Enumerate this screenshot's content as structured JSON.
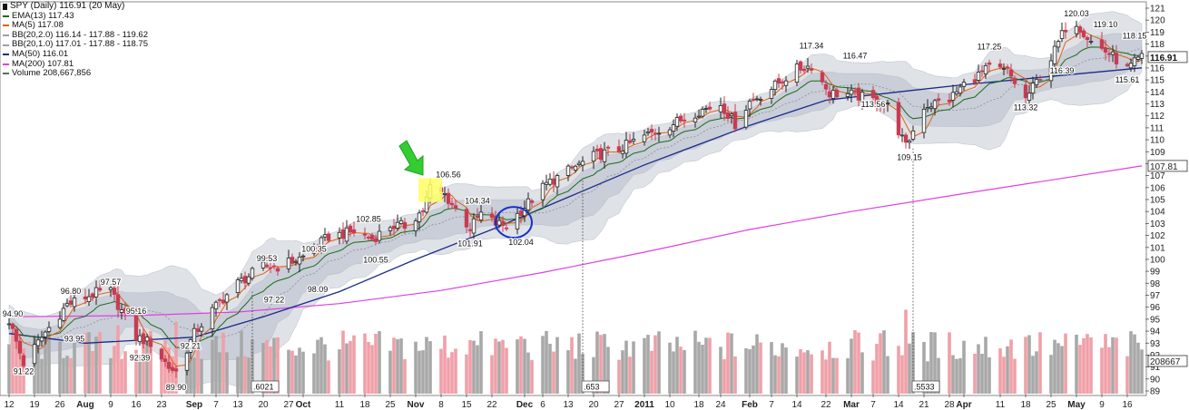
{
  "legend": {
    "title": "SPY (Daily) 116.91 (20 May)",
    "items": [
      {
        "text": "EMA(13) 117.43",
        "color": "#1a6b1a"
      },
      {
        "text": "MA(5) 117.08",
        "color": "#e06010"
      },
      {
        "text": "BB(20,2.0) 116.14 - 117.88 - 119.62",
        "color": "#9aa0a8"
      },
      {
        "text": "BB(20,1.0) 117.01 - 117.88 - 118.75",
        "color": "#9aa0a8"
      },
      {
        "text": "MA(50) 116.01",
        "color": "#1b2a8a"
      },
      {
        "text": "MA(200) 107.81",
        "color": "#e040e0"
      },
      {
        "text": "Volume 208,667,856",
        "color": "#666666"
      }
    ]
  },
  "chart_data": {
    "type": "candlestick",
    "title": "SPY (Daily) 116.91 (20 May)",
    "y_axis": {
      "min": 89,
      "max": 121,
      "ticks": [
        89,
        90,
        91,
        92,
        93,
        94,
        95,
        96,
        97,
        98,
        99,
        100,
        101,
        102,
        103,
        104,
        105,
        106,
        107,
        108,
        109,
        110,
        111,
        112,
        113,
        114,
        115,
        116,
        117,
        118,
        119,
        120,
        121
      ]
    },
    "x_axis": {
      "start": "2010-07-12",
      "end": "2011-05-20",
      "ticks": [
        {
          "label": "12",
          "date": "2010-07-12",
          "bold": false
        },
        {
          "label": "19",
          "date": "2010-07-19",
          "bold": false
        },
        {
          "label": "26",
          "date": "2010-07-26",
          "bold": false
        },
        {
          "label": "Aug",
          "date": "2010-08-02",
          "bold": true
        },
        {
          "label": "9",
          "date": "2010-08-09",
          "bold": false
        },
        {
          "label": "16",
          "date": "2010-08-16",
          "bold": false
        },
        {
          "label": "23",
          "date": "2010-08-23",
          "bold": false
        },
        {
          "label": "Sep",
          "date": "2010-09-01",
          "bold": true
        },
        {
          "label": "7",
          "date": "2010-09-07",
          "bold": false
        },
        {
          "label": "13",
          "date": "2010-09-13",
          "bold": false
        },
        {
          "label": "20",
          "date": "2010-09-20",
          "bold": false
        },
        {
          "label": "27",
          "date": "2010-09-27",
          "bold": false
        },
        {
          "label": "Oct",
          "date": "2010-10-01",
          "bold": true
        },
        {
          "label": "11",
          "date": "2010-10-11",
          "bold": false
        },
        {
          "label": "18",
          "date": "2010-10-18",
          "bold": false
        },
        {
          "label": "25",
          "date": "2010-10-25",
          "bold": false
        },
        {
          "label": "Nov",
          "date": "2010-11-01",
          "bold": true
        },
        {
          "label": "8",
          "date": "2010-11-08",
          "bold": false
        },
        {
          "label": "15",
          "date": "2010-11-15",
          "bold": false
        },
        {
          "label": "22",
          "date": "2010-11-22",
          "bold": false
        },
        {
          "label": "Dec",
          "date": "2010-12-01",
          "bold": true
        },
        {
          "label": "6",
          "date": "2010-12-06",
          "bold": false
        },
        {
          "label": "13",
          "date": "2010-12-13",
          "bold": false
        },
        {
          "label": "20",
          "date": "2010-12-20",
          "bold": false
        },
        {
          "label": "27",
          "date": "2010-12-27",
          "bold": false
        },
        {
          "label": "2011",
          "date": "2011-01-03",
          "bold": true
        },
        {
          "label": "10",
          "date": "2011-01-10",
          "bold": false
        },
        {
          "label": "18",
          "date": "2011-01-18",
          "bold": false
        },
        {
          "label": "24",
          "date": "2011-01-24",
          "bold": false
        },
        {
          "label": "Feb",
          "date": "2011-02-01",
          "bold": true
        },
        {
          "label": "7",
          "date": "2011-02-07",
          "bold": false
        },
        {
          "label": "14",
          "date": "2011-02-14",
          "bold": false
        },
        {
          "label": "22",
          "date": "2011-02-22",
          "bold": false
        },
        {
          "label": "Mar",
          "date": "2011-03-01",
          "bold": true
        },
        {
          "label": "7",
          "date": "2011-03-07",
          "bold": false
        },
        {
          "label": "14",
          "date": "2011-03-14",
          "bold": false
        },
        {
          "label": "21",
          "date": "2011-03-21",
          "bold": false
        },
        {
          "label": "28",
          "date": "2011-03-28",
          "bold": false
        },
        {
          "label": "Apr",
          "date": "2011-04-01",
          "bold": true
        },
        {
          "label": "11",
          "date": "2011-04-11",
          "bold": false
        },
        {
          "label": "18",
          "date": "2011-04-18",
          "bold": false
        },
        {
          "label": "25",
          "date": "2011-04-25",
          "bold": false
        },
        {
          "label": "May",
          "date": "2011-05-02",
          "bold": true
        },
        {
          "label": "9",
          "date": "2011-05-09",
          "bold": false
        },
        {
          "label": "16",
          "date": "2011-05-16",
          "bold": false
        }
      ]
    },
    "closing_path": [
      [
        "2010-07-12",
        94.9
      ],
      [
        "2010-07-16",
        91.3
      ],
      [
        "2010-07-22",
        93.9
      ],
      [
        "2010-07-28",
        96.2
      ],
      [
        "2010-08-05",
        97.2
      ],
      [
        "2010-08-09",
        97.3
      ],
      [
        "2010-08-16",
        93.5
      ],
      [
        "2010-08-20",
        93.0
      ],
      [
        "2010-08-25",
        91.0
      ],
      [
        "2010-08-27",
        90.6
      ],
      [
        "2010-09-01",
        93.8
      ],
      [
        "2010-09-07",
        96.1
      ],
      [
        "2010-09-13",
        98.0
      ],
      [
        "2010-09-20",
        99.4
      ],
      [
        "2010-09-24",
        99.4
      ],
      [
        "2010-10-01",
        100.2
      ],
      [
        "2010-10-08",
        101.9
      ],
      [
        "2010-10-15",
        102.3
      ],
      [
        "2010-10-20",
        101.7
      ],
      [
        "2010-10-25",
        102.8
      ],
      [
        "2010-10-29",
        102.8
      ],
      [
        "2010-11-03",
        104.1
      ],
      [
        "2010-11-05",
        106.0
      ],
      [
        "2010-11-09",
        105.4
      ],
      [
        "2010-11-12",
        104.2
      ],
      [
        "2010-11-16",
        102.6
      ],
      [
        "2010-11-19",
        103.8
      ],
      [
        "2010-11-23",
        103.0
      ],
      [
        "2010-11-26",
        102.8
      ],
      [
        "2010-12-01",
        104.4
      ],
      [
        "2010-12-07",
        106.3
      ],
      [
        "2010-12-13",
        107.4
      ],
      [
        "2010-12-20",
        108.6
      ],
      [
        "2010-12-27",
        109.2
      ],
      [
        "2011-01-03",
        110.3
      ],
      [
        "2011-01-10",
        111.2
      ],
      [
        "2011-01-18",
        112.4
      ],
      [
        "2011-01-24",
        113.0
      ],
      [
        "2011-01-28",
        111.3
      ],
      [
        "2011-02-01",
        113.2
      ],
      [
        "2011-02-07",
        114.3
      ],
      [
        "2011-02-14",
        115.9
      ],
      [
        "2011-02-18",
        116.2
      ],
      [
        "2011-02-23",
        113.9
      ],
      [
        "2011-03-01",
        113.8
      ],
      [
        "2011-03-07",
        113.3
      ],
      [
        "2011-03-11",
        112.8
      ],
      [
        "2011-03-16",
        109.4
      ],
      [
        "2011-03-21",
        112.8
      ],
      [
        "2011-03-28",
        113.4
      ],
      [
        "2011-04-01",
        114.6
      ],
      [
        "2011-04-08",
        116.0
      ],
      [
        "2011-04-13",
        115.7
      ],
      [
        "2011-04-18",
        113.4
      ],
      [
        "2011-04-25",
        116.8
      ],
      [
        "2011-04-29",
        119.4
      ],
      [
        "2011-05-02",
        119.8
      ],
      [
        "2011-05-06",
        118.2
      ],
      [
        "2011-05-11",
        117.2
      ],
      [
        "2011-05-16",
        115.9
      ],
      [
        "2011-05-20",
        116.9
      ]
    ],
    "ma50_path": [
      [
        "2010-07-12",
        93.8
      ],
      [
        "2010-08-02",
        93.0
      ],
      [
        "2010-09-01",
        93.5
      ],
      [
        "2010-09-20",
        95.2
      ],
      [
        "2010-10-11",
        97.3
      ],
      [
        "2010-11-01",
        100.0
      ],
      [
        "2010-11-22",
        102.5
      ],
      [
        "2010-12-13",
        105.2
      ],
      [
        "2011-01-03",
        107.9
      ],
      [
        "2011-02-01",
        111.2
      ],
      [
        "2011-02-22",
        113.3
      ],
      [
        "2011-03-14",
        114.0
      ],
      [
        "2011-04-01",
        114.6
      ],
      [
        "2011-04-25",
        115.3
      ],
      [
        "2011-05-20",
        116.01
      ]
    ],
    "ma200_path": [
      [
        "2010-07-12",
        95.2
      ],
      [
        "2010-08-16",
        95.3
      ],
      [
        "2010-09-13",
        95.6
      ],
      [
        "2010-10-11",
        96.3
      ],
      [
        "2010-11-08",
        97.4
      ],
      [
        "2010-12-06",
        98.9
      ],
      [
        "2011-01-03",
        100.6
      ],
      [
        "2011-02-01",
        102.5
      ],
      [
        "2011-03-01",
        104.0
      ],
      [
        "2011-04-01",
        105.5
      ],
      [
        "2011-05-20",
        107.81
      ]
    ],
    "annotations": [
      {
        "label": "94.90",
        "date": "2010-07-13",
        "price": 94.9,
        "pos": "above"
      },
      {
        "label": "91.22",
        "date": "2010-07-16",
        "price": 91.22,
        "pos": "below"
      },
      {
        "label": "96.80",
        "date": "2010-07-29",
        "price": 96.8,
        "pos": "above"
      },
      {
        "label": "93.95",
        "date": "2010-07-30",
        "price": 93.95,
        "pos": "below"
      },
      {
        "label": "97.57",
        "date": "2010-08-09",
        "price": 97.57,
        "pos": "above"
      },
      {
        "label": "95.16",
        "date": "2010-08-16",
        "price": 95.16,
        "pos": "above"
      },
      {
        "label": "92.39",
        "date": "2010-08-17",
        "price": 92.39,
        "pos": "below"
      },
      {
        "label": "92.21",
        "date": "2010-08-31",
        "price": 92.21,
        "pos": "above"
      },
      {
        "label": "89.90",
        "date": "2010-08-27",
        "price": 89.9,
        "pos": "below"
      },
      {
        "label": "99.53",
        "date": "2010-09-21",
        "price": 99.53,
        "pos": "above"
      },
      {
        "label": "97.22",
        "date": "2010-09-23",
        "price": 97.22,
        "pos": "below"
      },
      {
        "label": "100.35",
        "date": "2010-10-04",
        "price": 100.35,
        "pos": "above"
      },
      {
        "label": "98.09",
        "date": "2010-10-05",
        "price": 98.09,
        "pos": "below"
      },
      {
        "label": "102.85",
        "date": "2010-10-19",
        "price": 102.85,
        "pos": "above"
      },
      {
        "label": "100.55",
        "date": "2010-10-21",
        "price": 100.55,
        "pos": "below"
      },
      {
        "label": "106.56",
        "date": "2010-11-10",
        "price": 106.56,
        "pos": "above"
      },
      {
        "label": "104.34",
        "date": "2010-11-18",
        "price": 104.34,
        "pos": "above"
      },
      {
        "label": "101.91",
        "date": "2010-11-16",
        "price": 101.91,
        "pos": "below"
      },
      {
        "label": "102.04",
        "date": "2010-11-30",
        "price": 102.04,
        "pos": "below"
      },
      {
        "label": "117.34",
        "date": "2011-02-18",
        "price": 117.34,
        "pos": "above"
      },
      {
        "label": "116.47",
        "date": "2011-03-02",
        "price": 116.47,
        "pos": "above"
      },
      {
        "label": "113.56",
        "date": "2011-03-07",
        "price": 113.56,
        "pos": "below"
      },
      {
        "label": "109.15",
        "date": "2011-03-17",
        "price": 109.15,
        "pos": "below"
      },
      {
        "label": "117.25",
        "date": "2011-04-08",
        "price": 117.25,
        "pos": "above"
      },
      {
        "label": "113.32",
        "date": "2011-04-18",
        "price": 113.32,
        "pos": "below"
      },
      {
        "label": "120.03",
        "date": "2011-05-02",
        "price": 120.03,
        "pos": "above"
      },
      {
        "label": "119.10",
        "date": "2011-05-10",
        "price": 119.1,
        "pos": "above"
      },
      {
        "label": "116.39",
        "date": "2011-04-28",
        "price": 116.39,
        "pos": "below"
      },
      {
        "label": "118.15",
        "date": "2011-05-18",
        "price": 118.15,
        "pos": "above"
      },
      {
        "label": "115.61",
        "date": "2011-05-16",
        "price": 115.61,
        "pos": "below"
      }
    ],
    "marker_lines": [
      {
        "date": "2010-09-17",
        "label": ".6021"
      },
      {
        "date": "2010-12-17",
        "label": ".653"
      },
      {
        "date": "2011-03-18",
        "label": ".5533"
      }
    ],
    "right_labels": [
      {
        "price": 116.91,
        "label": "116.91",
        "emphasis": true
      },
      {
        "price": 107.81,
        "label": "107.81",
        "emphasis": false
      },
      {
        "price": 91.5,
        "label": "208667",
        "emphasis": false
      }
    ],
    "highlight_box": {
      "date": "2010-11-05",
      "price_low": 104.8,
      "price_high": 106.8,
      "color": "#ffff66"
    },
    "circle": {
      "date": "2010-11-28",
      "price": 103.1
    },
    "arrow": {
      "date": "2010-11-02",
      "price": 107.2,
      "color": "#33cc33"
    },
    "colors": {
      "up": "#ffffff",
      "down": "#c83c52",
      "ema13": "#1a6b1a",
      "ma5": "#e06010",
      "ma50": "#1b2a8a",
      "ma200": "#e040e0",
      "band_outer": "#dfe2e6",
      "band_inner": "#c9ced8",
      "volume_up": "#a8a8a8",
      "volume_down": "#f0a0a8"
    }
  }
}
